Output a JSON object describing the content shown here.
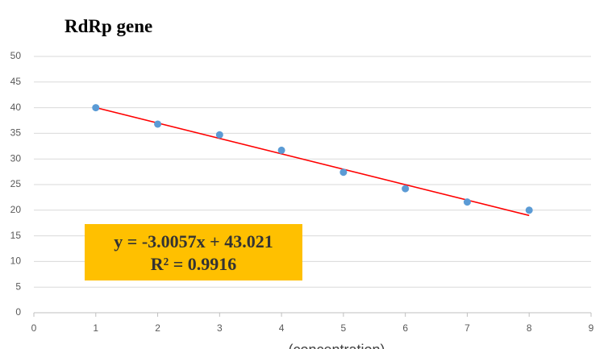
{
  "chart_data": {
    "type": "scatter",
    "title": "RdRp gene",
    "x_label": "(concentration)",
    "x": [
      1,
      2,
      3,
      4,
      5,
      6,
      7,
      8
    ],
    "series": [
      {
        "color": "#5b9bd5",
        "values": [
          40,
          36.8,
          34.7,
          31.7,
          27.4,
          24.2,
          21.6,
          20
        ]
      }
    ],
    "trendline": {
      "slope": -3.0057,
      "intercept": 43.021,
      "color": "#ff0000",
      "equation": "y = -3.0057x + 43.021",
      "r_squared": "R² = 0.9916",
      "box_color": "#ffc000"
    },
    "xlim": [
      0,
      9
    ],
    "xticks": [
      0,
      1,
      2,
      3,
      4,
      5,
      6,
      7,
      8,
      9
    ],
    "ylim": [
      0,
      50
    ],
    "yticks": [
      0,
      5,
      10,
      15,
      20,
      25,
      30,
      35,
      40,
      45,
      50
    ],
    "grid": true
  }
}
